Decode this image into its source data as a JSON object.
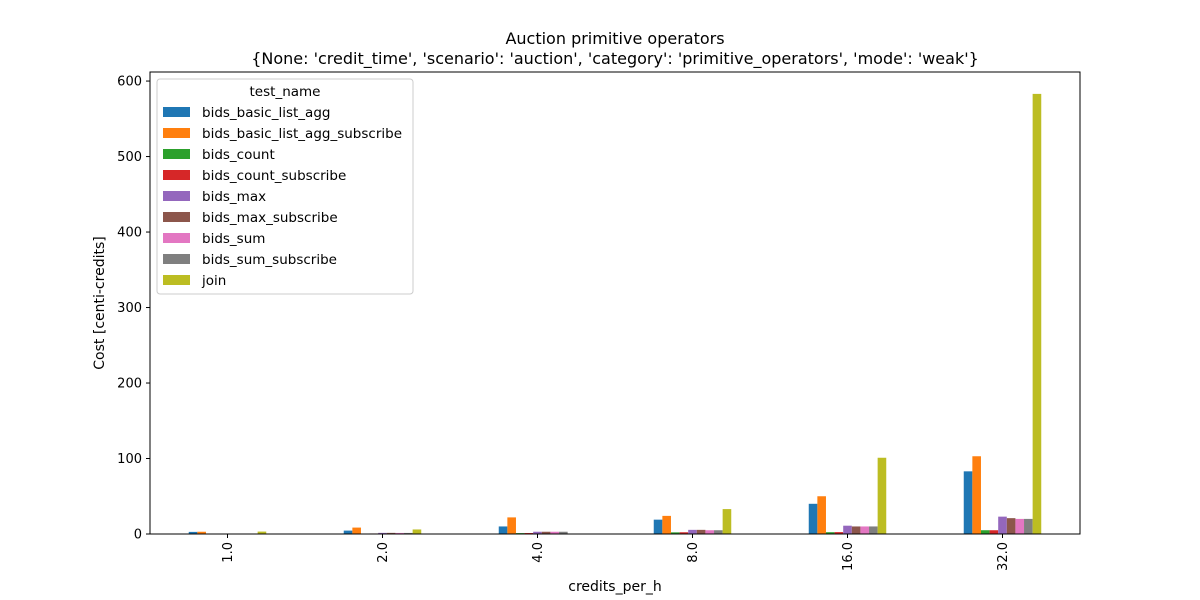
{
  "chart_data": {
    "type": "bar",
    "title": "Auction primitive operators",
    "subtitle": "{None: 'credit_time', 'scenario': 'auction', 'category': 'primitive_operators', 'mode': 'weak'}",
    "xlabel": "credits_per_h",
    "ylabel": "Cost [centi-credits]",
    "categories": [
      "1.0",
      "2.0",
      "4.0",
      "8.0",
      "16.0",
      "32.0"
    ],
    "ylim": [
      0,
      612
    ],
    "yticks": [
      0,
      100,
      200,
      300,
      400,
      500,
      600
    ],
    "legend": {
      "title": "test_name",
      "placement": "upper-left"
    },
    "series": [
      {
        "name": "bids_basic_list_agg",
        "color": "#1f77b4",
        "values": [
          2.8,
          4.5,
          10,
          19,
          40,
          83
        ]
      },
      {
        "name": "bids_basic_list_agg_subscribe",
        "color": "#ff7f0e",
        "values": [
          3.0,
          8.5,
          22,
          24,
          50,
          103
        ]
      },
      {
        "name": "bids_count",
        "color": "#2ca02c",
        "values": [
          0.3,
          0.6,
          1.2,
          2.2,
          2.4,
          5
        ]
      },
      {
        "name": "bids_count_subscribe",
        "color": "#d62728",
        "values": [
          0.3,
          0.7,
          1.3,
          2.3,
          2.5,
          5
        ]
      },
      {
        "name": "bids_max",
        "color": "#9467bd",
        "values": [
          0.6,
          1.5,
          3.0,
          5.5,
          11,
          23
        ]
      },
      {
        "name": "bids_max_subscribe",
        "color": "#8c564b",
        "values": [
          0.6,
          1.5,
          3.0,
          5.5,
          10,
          21
        ]
      },
      {
        "name": "bids_sum",
        "color": "#e377c2",
        "values": [
          0.6,
          1.4,
          3.0,
          5.0,
          10,
          20
        ]
      },
      {
        "name": "bids_sum_subscribe",
        "color": "#7f7f7f",
        "values": [
          0.6,
          1.4,
          3.0,
          5.0,
          10,
          20
        ]
      },
      {
        "name": "join",
        "color": "#bcbd22",
        "values": [
          3.2,
          6,
          0.2,
          33,
          101,
          583
        ]
      }
    ]
  }
}
